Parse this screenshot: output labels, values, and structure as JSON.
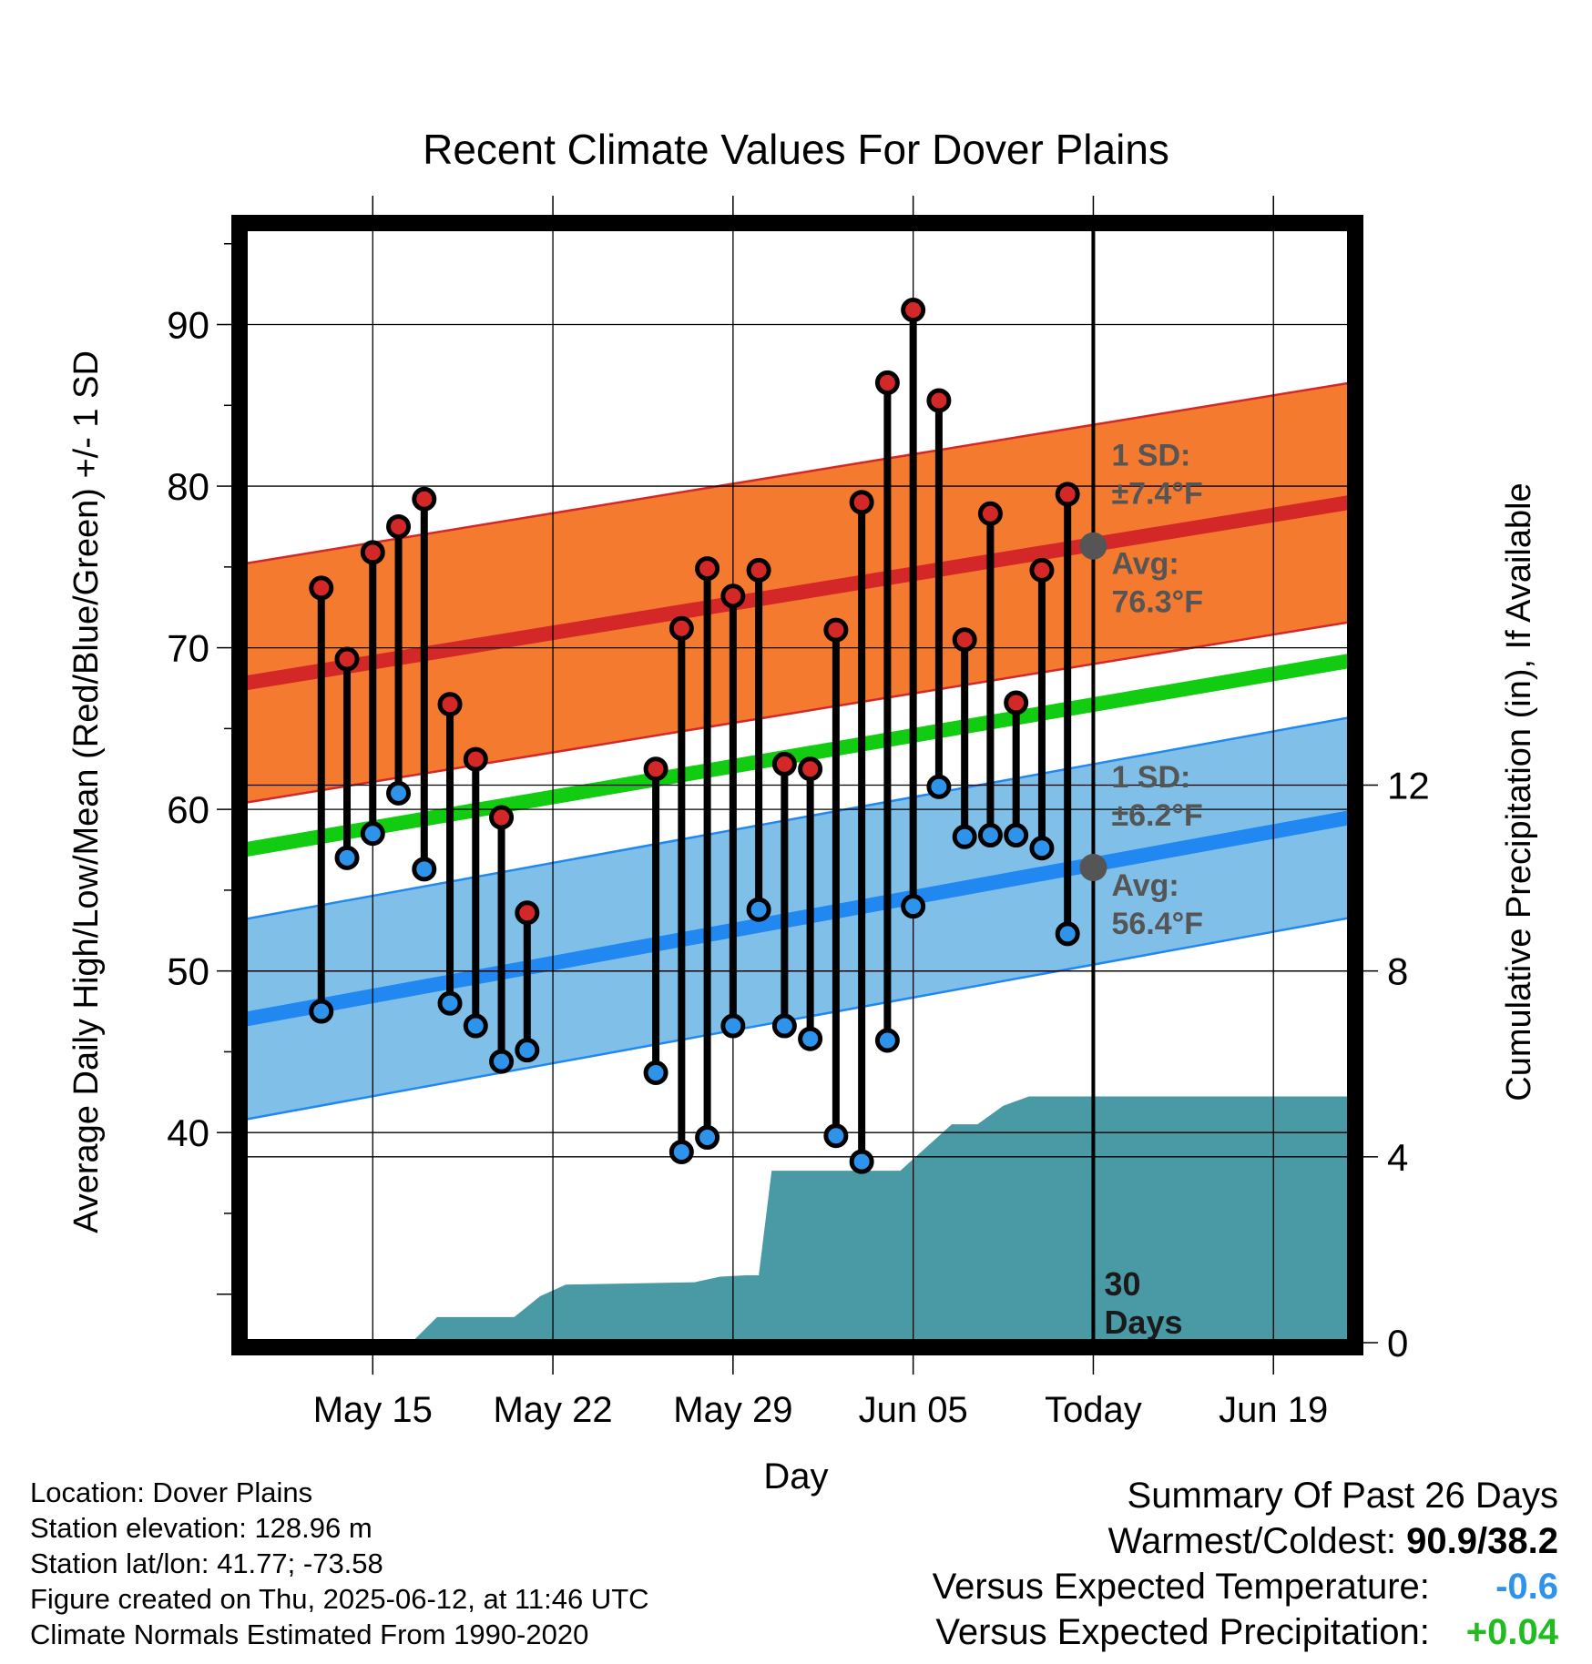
{
  "chart_data": {
    "type": "line",
    "title": "Recent Climate Values For Dover Plains",
    "xlabel": "Day",
    "ylabel": "Average Daily High/Low/Mean (Red/Blue/Green) +/- 1 SD",
    "y2label": "Cumulative Precipitation (in), If Available",
    "x_range_days": [
      -33,
      10
    ],
    "ylim": [
      27,
      96
    ],
    "y2lim": [
      0,
      24
    ],
    "x_tick_labels": [
      {
        "day": -28,
        "label": "May 15"
      },
      {
        "day": -21,
        "label": "May 22"
      },
      {
        "day": -14,
        "label": "May 29"
      },
      {
        "day": -7,
        "label": "Jun 05"
      },
      {
        "day": 0,
        "label": "Today"
      },
      {
        "day": 7,
        "label": "Jun 19"
      }
    ],
    "y_ticks": [
      40,
      50,
      60,
      70,
      80,
      90
    ],
    "y2_ticks": [
      0,
      4,
      8,
      12
    ],
    "grid": true,
    "today_line": {
      "day": 0,
      "label_line1": "30",
      "label_line2": "Days"
    },
    "normal_high": {
      "start": 67.8,
      "end": 79.0,
      "sd": 7.4
    },
    "normal_low": {
      "start": 47.0,
      "end": 59.5,
      "sd": 6.2
    },
    "normal_mean": {
      "start": 57.5,
      "end": 69.2
    },
    "annotations": {
      "high_sd": "1 SD:",
      "high_sd_value": "±7.4°F",
      "high_avg": "Avg:",
      "high_avg_value": "76.3°F",
      "low_sd": "1 SD:",
      "low_sd_value": "±6.2°F",
      "low_avg": "Avg:",
      "low_avg_value": "56.4°F",
      "high_avg_number": 76.3,
      "low_avg_number": 56.4
    },
    "days": [
      {
        "day": -30,
        "high": 73.7,
        "low": 47.5
      },
      {
        "day": -29,
        "high": 69.3,
        "low": 57.0
      },
      {
        "day": -28,
        "high": 75.9,
        "low": 58.5
      },
      {
        "day": -27,
        "high": 77.5,
        "low": 61.0
      },
      {
        "day": -26,
        "high": 79.2,
        "low": 56.3
      },
      {
        "day": -25,
        "high": 66.5,
        "low": 48.0
      },
      {
        "day": -24,
        "high": 63.1,
        "low": 46.6
      },
      {
        "day": -23,
        "high": 59.5,
        "low": 44.4
      },
      {
        "day": -22,
        "high": 53.6,
        "low": 45.1
      },
      {
        "day": -17,
        "high": 62.5,
        "low": 43.7
      },
      {
        "day": -16,
        "high": 71.2,
        "low": 38.8
      },
      {
        "day": -15,
        "high": 74.9,
        "low": 39.7
      },
      {
        "day": -14,
        "high": 73.2,
        "low": 46.6
      },
      {
        "day": -13,
        "high": 74.8,
        "low": 53.8
      },
      {
        "day": -12,
        "high": 62.8,
        "low": 46.6
      },
      {
        "day": -11,
        "high": 62.5,
        "low": 45.8
      },
      {
        "day": -10,
        "high": 71.1,
        "low": 39.8
      },
      {
        "day": -9,
        "high": 79.0,
        "low": 38.2
      },
      {
        "day": -8,
        "high": 86.4,
        "low": 45.7
      },
      {
        "day": -7,
        "high": 90.9,
        "low": 54.0
      },
      {
        "day": -6,
        "high": 85.3,
        "low": 61.4
      },
      {
        "day": -5,
        "high": 70.5,
        "low": 58.3
      },
      {
        "day": -4,
        "high": 78.3,
        "low": 58.4
      },
      {
        "day": -3,
        "high": 66.6,
        "low": 58.4
      },
      {
        "day": -2,
        "high": 74.8,
        "low": 57.6
      },
      {
        "day": -1,
        "high": 79.5,
        "low": 52.3
      }
    ],
    "precipitation": [
      {
        "day": -33,
        "value": 0
      },
      {
        "day": -26.5,
        "value": 0
      },
      {
        "day": -25.5,
        "value": 0.55
      },
      {
        "day": -22.5,
        "value": 0.55
      },
      {
        "day": -21.5,
        "value": 1.0
      },
      {
        "day": -20.5,
        "value": 1.25
      },
      {
        "day": -15.5,
        "value": 1.3
      },
      {
        "day": -14.5,
        "value": 1.42
      },
      {
        "day": -13.5,
        "value": 1.45
      },
      {
        "day": -13,
        "value": 1.45
      },
      {
        "day": -12.5,
        "value": 3.7
      },
      {
        "day": -7.5,
        "value": 3.7
      },
      {
        "day": -6.5,
        "value": 4.2
      },
      {
        "day": -5.5,
        "value": 4.7
      },
      {
        "day": -4.5,
        "value": 4.7
      },
      {
        "day": -3.5,
        "value": 5.1
      },
      {
        "day": -2.5,
        "value": 5.3
      },
      {
        "day": 10,
        "value": 5.3
      }
    ]
  },
  "info": {
    "location": "Location: Dover Plains",
    "elevation": "Station elevation: 128.96 m",
    "latlon": "Station lat/lon: 41.77; -73.58",
    "created": "Figure created on Thu, 2025-06-12, at 11:46 UTC",
    "normals": "Climate Normals Estimated From 1990-2020"
  },
  "summary": {
    "title": "Summary Of Past 26 Days",
    "warmest_coldest_label": "Warmest/Coldest:",
    "warmest_coldest_value": "90.9/38.2",
    "temp_label": "Versus Expected Temperature:",
    "temp_value": "-0.6",
    "precip_label": "Versus Expected Precipitation:",
    "precip_value": "+0.04",
    "temp_color": "#2e93ea",
    "precip_color": "#22bb22"
  },
  "colors": {
    "high_band": "#f47a30",
    "high_line": "#d42828",
    "high_dot": "#d42828",
    "low_band": "#80c0e8",
    "low_line": "#2088f0",
    "low_dot": "#2e93ea",
    "mean_line": "#11cc11",
    "precip_fill": "#4a9aa5",
    "annotation": "#555555"
  }
}
